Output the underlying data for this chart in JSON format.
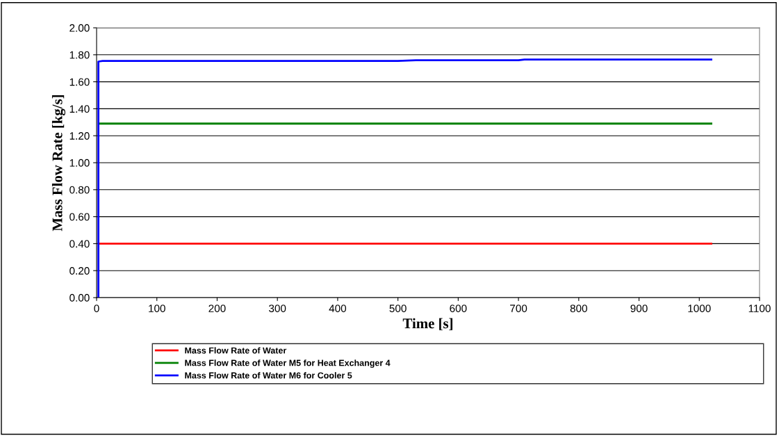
{
  "chart_data": {
    "type": "line",
    "xlabel": "Time [s]",
    "ylabel": "Mass Flow Rate [kg/s]",
    "xlim": [
      0,
      1100
    ],
    "xticks": [
      0,
      100,
      200,
      300,
      400,
      500,
      600,
      700,
      800,
      900,
      1000,
      1100
    ],
    "ylim": [
      0,
      2
    ],
    "yticks": [
      {
        "value": 0,
        "label": "0.00"
      },
      {
        "value": 0.2,
        "label": "0.20"
      },
      {
        "value": 0.4,
        "label": "0.40"
      },
      {
        "value": 0.6,
        "label": "0.60"
      },
      {
        "value": 0.8,
        "label": "0.80"
      },
      {
        "value": 1.0,
        "label": "1.00"
      },
      {
        "value": 1.2,
        "label": "1.20"
      },
      {
        "value": 1.4,
        "label": "1.40"
      },
      {
        "value": 1.6,
        "label": "1.60"
      },
      {
        "value": 1.8,
        "label": "1.80"
      },
      {
        "value": 2.0,
        "label": "2.00"
      }
    ],
    "grid": "y",
    "legend": "bottom",
    "marker": "none",
    "line_style": "solid",
    "series": [
      {
        "name": "Mass Flow Rate of Water",
        "color": "#ff0000",
        "x": [
          4,
          1020
        ],
        "values": [
          0.4,
          0.4
        ]
      },
      {
        "name": "Mass Flow Rate of Water M5 for Heat Exchanger 4",
        "color": "#008000",
        "x": [
          4,
          300,
          600,
          1020
        ],
        "values": [
          1.29,
          1.29,
          1.29,
          1.29
        ]
      },
      {
        "name": "Mass Flow Rate of Water M6 for Cooler 5",
        "color": "#0000ff",
        "x": [
          3,
          3,
          10,
          250,
          500,
          530,
          700,
          710,
          900,
          1020
        ],
        "values": [
          0,
          1.75,
          1.755,
          1.755,
          1.755,
          1.76,
          1.76,
          1.765,
          1.765,
          1.765
        ]
      }
    ]
  }
}
